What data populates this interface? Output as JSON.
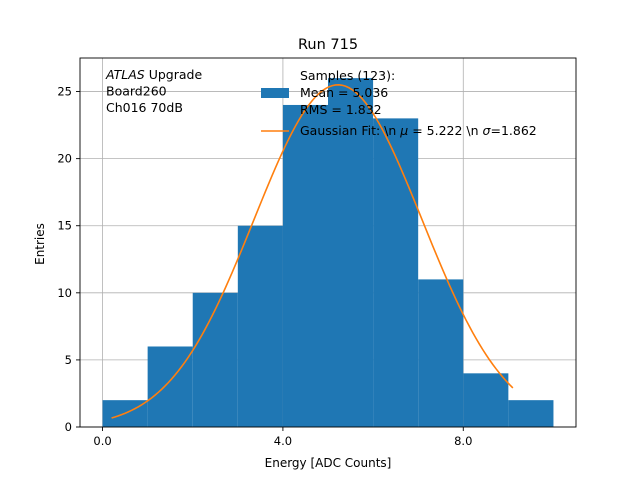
{
  "chart_data": {
    "type": "bar",
    "title": "Run 715",
    "xlabel": "Energy [ADC Counts]",
    "ylabel": "Entries",
    "xlim": [
      -0.5,
      10.5
    ],
    "ylim": [
      0,
      27.5
    ],
    "xticks": [
      0.0,
      4.0,
      8.0
    ],
    "xtick_labels": [
      "0.0",
      "4.0",
      "8.0"
    ],
    "yticks": [
      0,
      5,
      10,
      15,
      20,
      25
    ],
    "ytick_labels": [
      "0",
      "5",
      "10",
      "15",
      "20",
      "25"
    ],
    "grid": true,
    "histogram": {
      "bin_edges": [
        0,
        1,
        2,
        3,
        4,
        5,
        6,
        7,
        8,
        9,
        10
      ],
      "counts": [
        2,
        6,
        10,
        15,
        24,
        26,
        23,
        11,
        4,
        2
      ],
      "color": "#1f77b4"
    },
    "fit": {
      "mu": 5.222,
      "sigma": 1.862,
      "amplitude": 25.5,
      "x_range": [
        0.2,
        9.1
      ],
      "color": "#ff7f0e"
    },
    "annotation": {
      "lines": [
        {
          "italic": "ATLAS",
          "rest": " Upgrade"
        },
        {
          "italic": "",
          "rest": " Board260"
        },
        {
          "italic": "",
          "rest": " Ch016 70dB"
        }
      ]
    },
    "legend": {
      "placement": "top-right",
      "hist_label_lines": [
        "Samples (123):",
        " Mean = 5.036",
        " RMS = 1.832"
      ],
      "fit_label_parts": [
        "Gaussian Fit: \\n ",
        "μ",
        " = 5.222 \\n ",
        "σ",
        "=1.862"
      ]
    }
  }
}
